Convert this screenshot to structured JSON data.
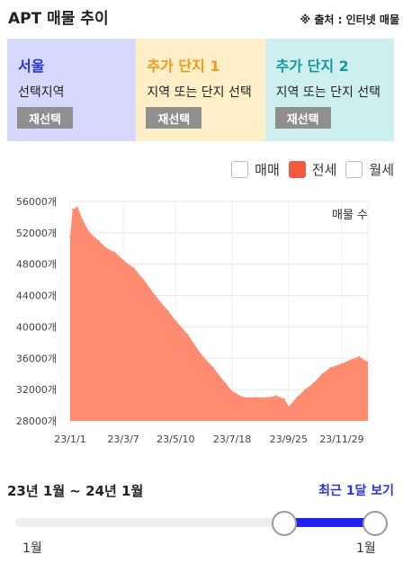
{
  "header": {
    "title": "APT 매물 추이",
    "source": "※ 출처 : 인터넷 매물"
  },
  "regions": [
    {
      "name": "서울",
      "subtitle": "선택지역",
      "button": "재선택",
      "bg": "#d6d9fb",
      "color": "#2a35e0"
    },
    {
      "name": "추가 단지 1",
      "subtitle": "지역 또는 단지 선택",
      "button": "재선택",
      "bg": "#feefc8",
      "color": "#f29b1a"
    },
    {
      "name": "추가 단지 2",
      "subtitle": "지역 또는 단지 선택",
      "button": "재선택",
      "bg": "#cdeff0",
      "color": "#149a9c"
    }
  ],
  "legend": [
    {
      "label": "매매",
      "checked": false
    },
    {
      "label": "전세",
      "checked": true
    },
    {
      "label": "월세",
      "checked": false
    }
  ],
  "chart_data": {
    "type": "area",
    "title": "",
    "annotation": "매물 수",
    "ylim": [
      28000,
      56000
    ],
    "yticks": [
      "56000개",
      "52000개",
      "48000개",
      "44000개",
      "40000개",
      "36000개",
      "32000개",
      "28000개"
    ],
    "xticks": [
      "23/1/1",
      "23/3/7",
      "23/5/10",
      "23/7/18",
      "23/9/25",
      "23/11/29"
    ],
    "series": [
      {
        "color": "#ff8b70",
        "points": [
          [
            "23/1/1",
            51500
          ],
          [
            "23/1/4",
            55000
          ],
          [
            "23/1/10",
            55300
          ],
          [
            "23/1/17",
            53500
          ],
          [
            "23/1/25",
            52000
          ],
          [
            "23/2/5",
            51000
          ],
          [
            "23/2/15",
            50000
          ],
          [
            "23/2/25",
            49500
          ],
          [
            "23/3/7",
            48500
          ],
          [
            "23/3/20",
            47500
          ],
          [
            "23/4/1",
            46000
          ],
          [
            "23/4/15",
            44000
          ],
          [
            "23/5/1",
            42000
          ],
          [
            "23/5/10",
            40800
          ],
          [
            "23/5/25",
            39000
          ],
          [
            "23/6/10",
            36500
          ],
          [
            "23/6/25",
            34800
          ],
          [
            "23/7/10",
            32800
          ],
          [
            "23/7/18",
            31800
          ],
          [
            "23/8/1",
            31000
          ],
          [
            "23/8/15",
            31000
          ],
          [
            "23/8/30",
            31000
          ],
          [
            "23/9/10",
            31200
          ],
          [
            "23/9/20",
            30800
          ],
          [
            "23/9/25",
            29800
          ],
          [
            "23/10/5",
            31000
          ],
          [
            "23/10/15",
            32000
          ],
          [
            "23/10/25",
            32800
          ],
          [
            "23/11/5",
            34000
          ],
          [
            "23/11/15",
            34800
          ],
          [
            "23/11/29",
            35300
          ],
          [
            "23/12/10",
            35800
          ],
          [
            "23/12/20",
            36200
          ],
          [
            "23/12/31",
            35500
          ]
        ]
      }
    ]
  },
  "range": {
    "label": "23년 1월 ~ 24년 1월",
    "recent_link": "최근 1달 보기",
    "min_label": "1월",
    "max_label": "1월"
  }
}
